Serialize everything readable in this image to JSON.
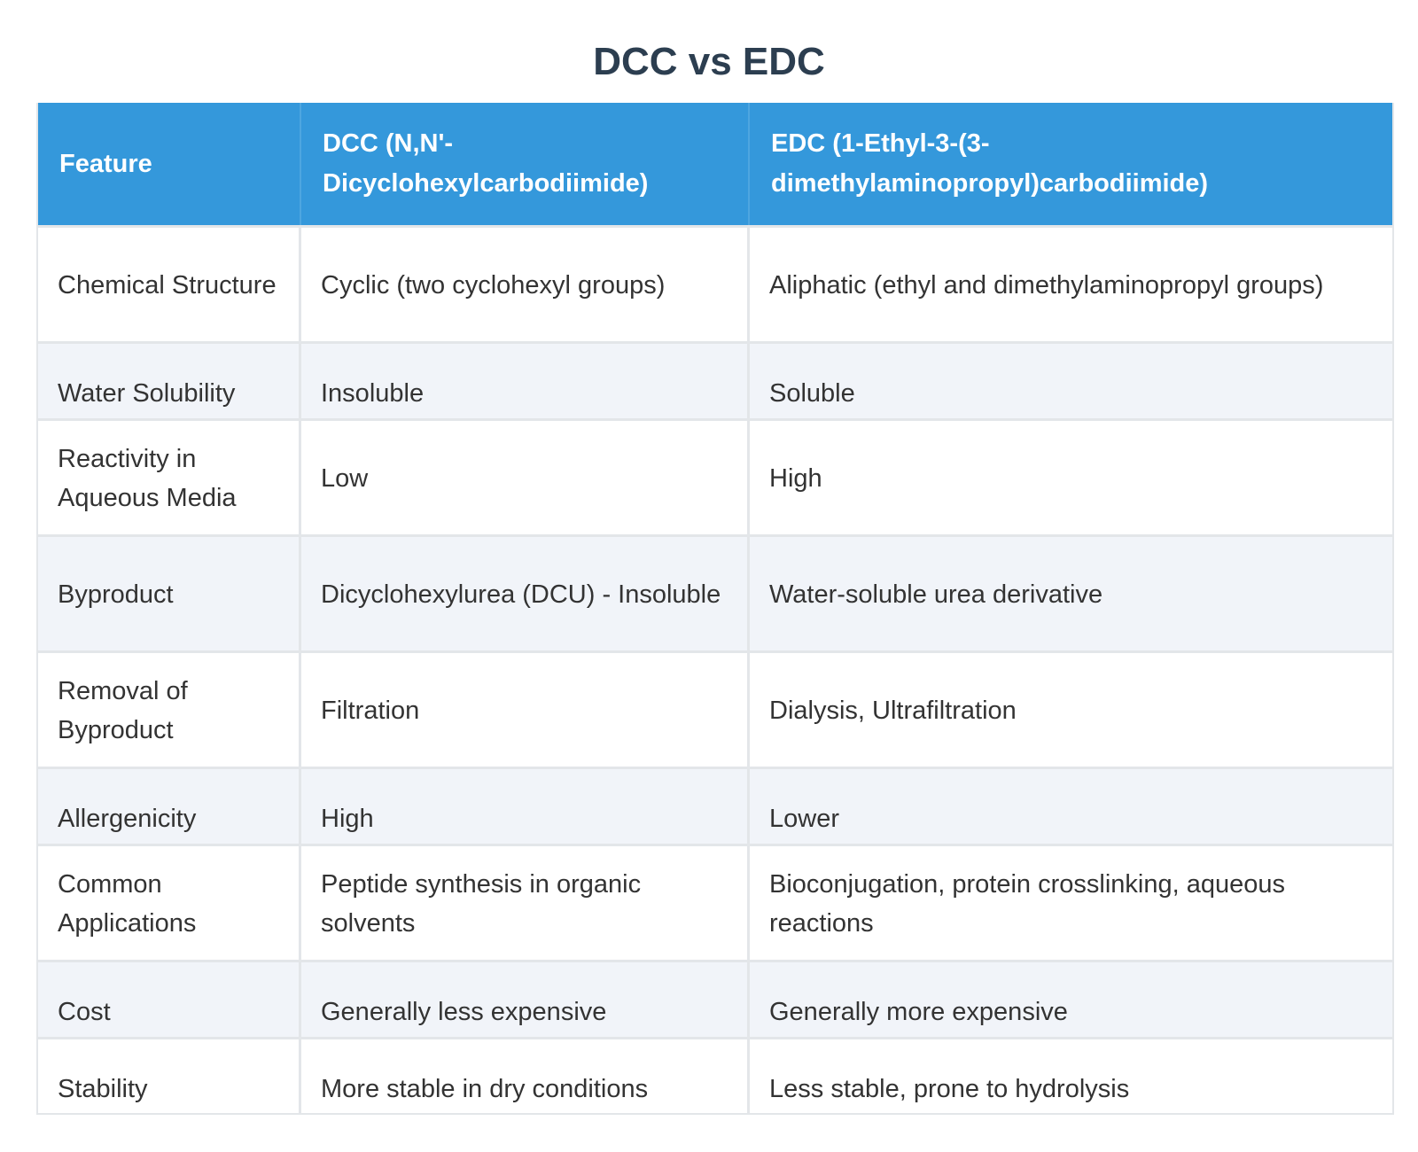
{
  "title": "DCC vs EDC",
  "table": {
    "headers": [
      "Feature",
      "DCC (N,N'-Dicyclohexylcarbodiimide)",
      "EDC (1-Ethyl-3-(3-dimethylaminopropyl)carbodiimide)"
    ],
    "rows": [
      [
        "Chemical Structure",
        "Cyclic (two cyclohexyl groups)",
        "Aliphatic (ethyl and dimethylaminopropyl groups)"
      ],
      [
        "Water Solubility",
        "Insoluble",
        "Soluble"
      ],
      [
        "Reactivity in Aqueous Media",
        "Low",
        "High"
      ],
      [
        "Byproduct",
        "Dicyclohexylurea (DCU) - Insoluble",
        "Water-soluble urea derivative"
      ],
      [
        "Removal of Byproduct",
        "Filtration",
        "Dialysis, Ultrafiltration"
      ],
      [
        "Allergenicity",
        "High",
        "Lower"
      ],
      [
        "Common Applications",
        "Peptide synthesis in organic solvents",
        "Bioconjugation, protein crosslinking, aqueous reactions"
      ],
      [
        "Cost",
        "Generally less expensive",
        "Generally more expensive"
      ],
      [
        "Stability",
        "More stable in dry conditions",
        "Less stable, prone to hydrolysis"
      ]
    ]
  },
  "colors": {
    "header_background": "#3498db",
    "header_text": "#ffffff",
    "title_text": "#2c3e50",
    "row_alt_background": "#f1f4f9",
    "border": "#e3e6e9"
  }
}
